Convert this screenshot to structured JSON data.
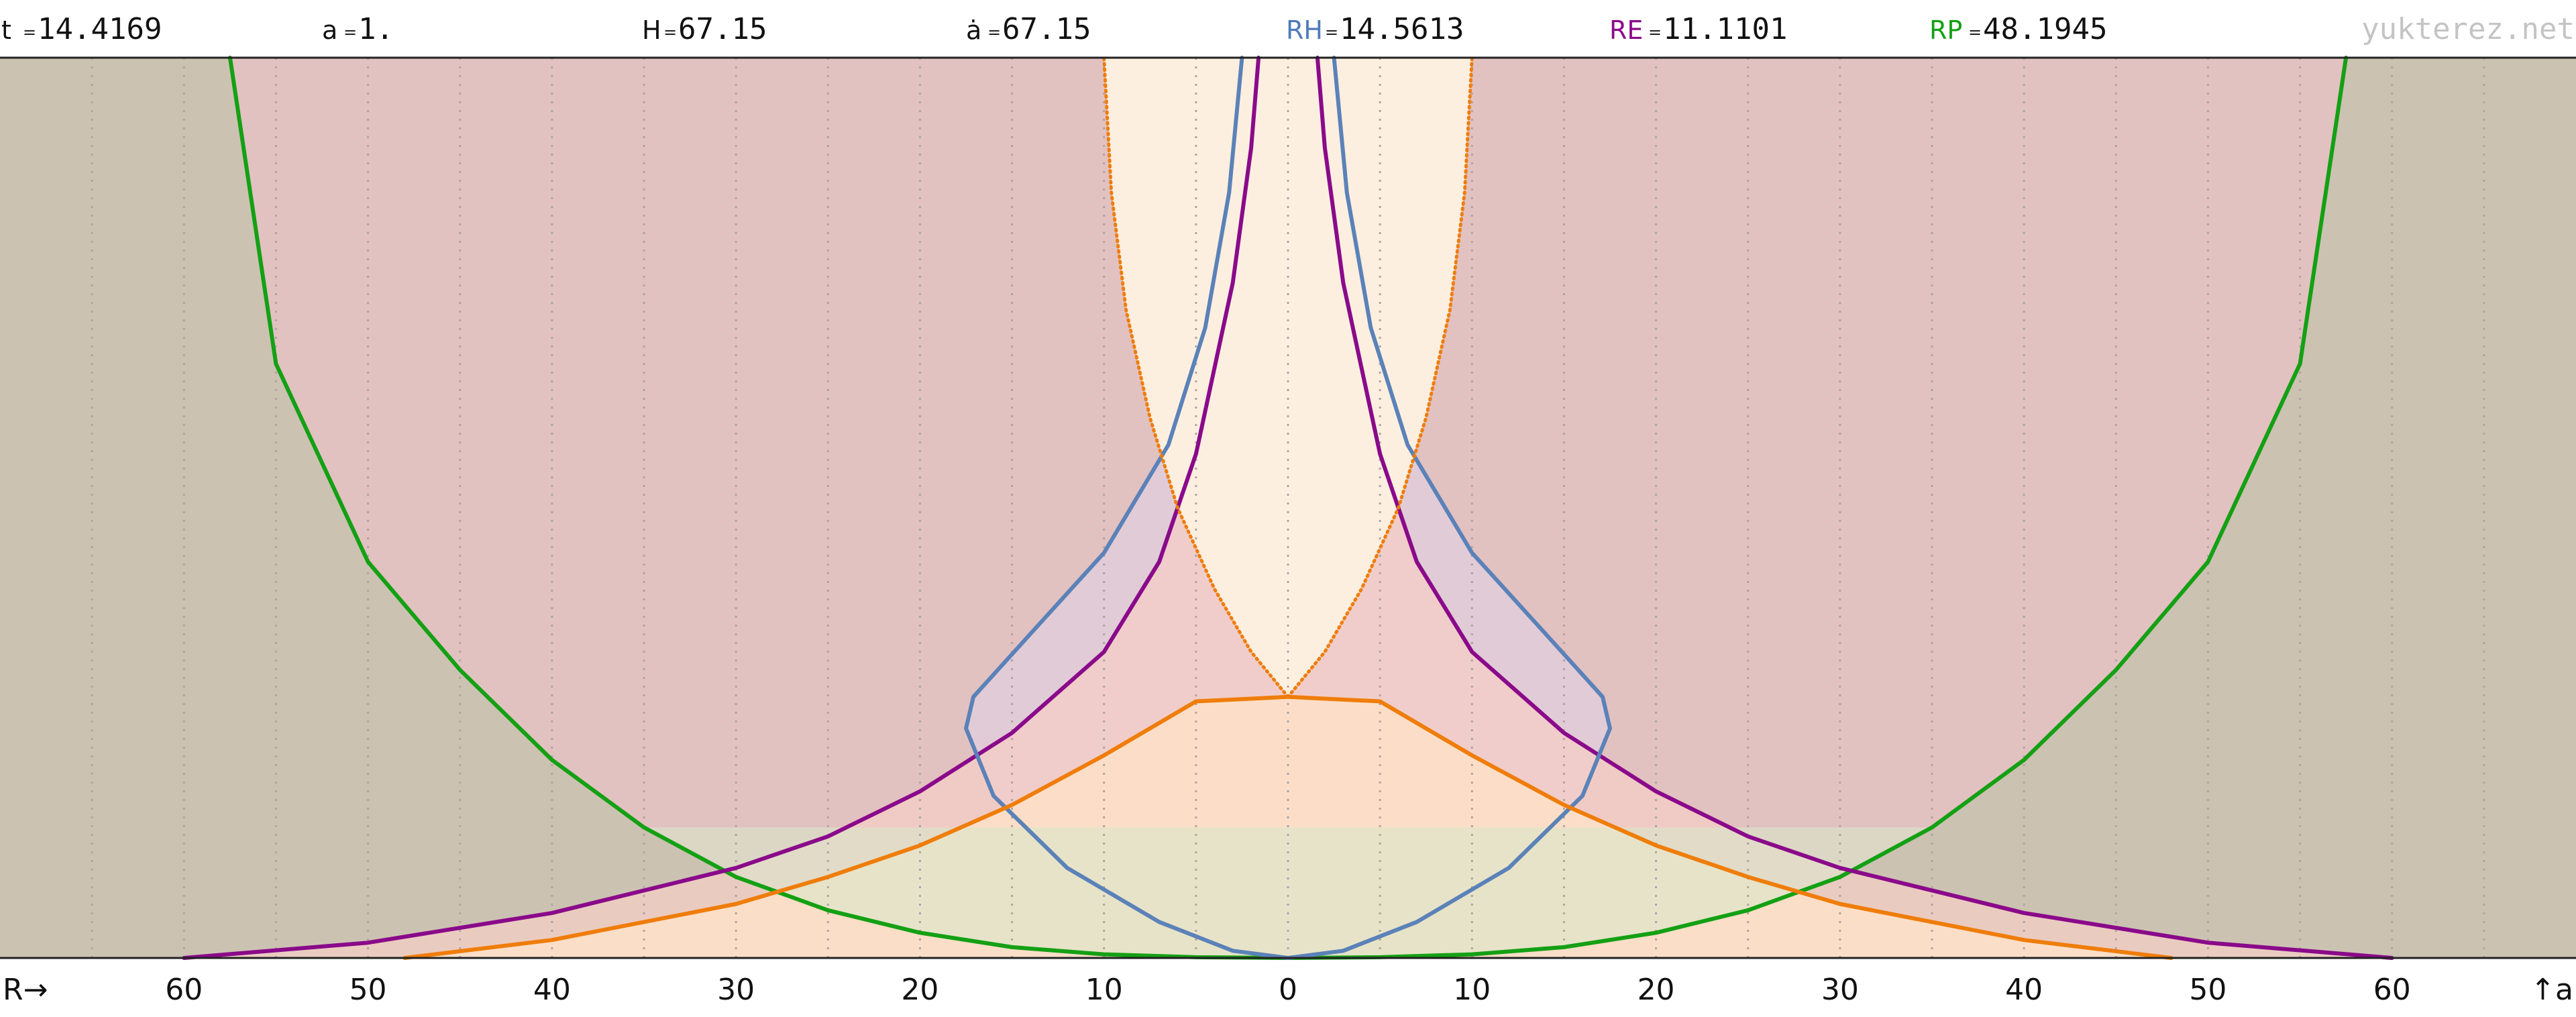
{
  "header": {
    "readouts": [
      {
        "label": "t",
        "value": "14.4169",
        "color": "#111111"
      },
      {
        "label": "a",
        "value": "1.",
        "color": "#111111"
      },
      {
        "label": "H",
        "value": "67.15",
        "color": "#111111"
      },
      {
        "label": "ȧ",
        "value": "67.15",
        "color": "#111111"
      },
      {
        "label": "RH",
        "value": "14.5613",
        "color": "#4f7bb7"
      },
      {
        "label": "RE",
        "value": "11.1101",
        "color": "#8a0a8a"
      },
      {
        "label": "RP",
        "value": "48.1945",
        "color": "#14a014"
      }
    ],
    "watermark": "yukterez.net"
  },
  "chart_data": {
    "type": "line",
    "x_axis_label": "R→",
    "y_axis_label": "↑a",
    "xlim": [
      -70,
      70
    ],
    "ylim": [
      0,
      1
    ],
    "tick_labels": [
      "60",
      "50",
      "40",
      "30",
      "20",
      "10",
      "0",
      "10",
      "20",
      "30",
      "40",
      "50",
      "60"
    ],
    "tick_values": [
      -60,
      -50,
      -40,
      -30,
      -20,
      -10,
      0,
      10,
      20,
      30,
      40,
      50,
      60
    ],
    "grid": "vertical dotted, every 5",
    "colors": {
      "background_outer": "#ccc2b1",
      "region_red": "#e2c1c1",
      "region_inner": "#fdefe0",
      "region_lavender": "#e0ccda",
      "region_green": "#d8e6c8",
      "grid": "#b0a4a4",
      "frame": "#222222"
    },
    "series": [
      {
        "key": "particle_horizon",
        "color": "#14a014",
        "style": "solid",
        "points": [
          [
            -57.5,
            1.0
          ],
          [
            -55,
            0.66
          ],
          [
            -50,
            0.44
          ],
          [
            -45,
            0.32
          ],
          [
            -40,
            0.22
          ],
          [
            -35,
            0.145
          ],
          [
            -30,
            0.09
          ],
          [
            -25,
            0.053
          ],
          [
            -20,
            0.028
          ],
          [
            -15,
            0.012
          ],
          [
            -10,
            0.004
          ],
          [
            -5,
            0.0008
          ],
          [
            0,
            0.0
          ],
          [
            5,
            0.0008
          ],
          [
            10,
            0.004
          ],
          [
            15,
            0.012
          ],
          [
            20,
            0.028
          ],
          [
            25,
            0.053
          ],
          [
            30,
            0.09
          ],
          [
            35,
            0.145
          ],
          [
            40,
            0.22
          ],
          [
            45,
            0.32
          ],
          [
            50,
            0.44
          ],
          [
            55,
            0.66
          ],
          [
            57.5,
            1.0
          ]
        ]
      },
      {
        "key": "event_horizon",
        "color": "#8a0a8a",
        "style": "solid",
        "points": [
          [
            -60,
            0.0
          ],
          [
            -50,
            0.017
          ],
          [
            -40,
            0.05
          ],
          [
            -30,
            0.1
          ],
          [
            -25,
            0.135
          ],
          [
            -20,
            0.185
          ],
          [
            -15,
            0.25
          ],
          [
            -10,
            0.34
          ],
          [
            -7,
            0.44
          ],
          [
            -5,
            0.56
          ],
          [
            -3,
            0.75
          ],
          [
            -2,
            0.9
          ],
          [
            -1.6,
            1.0
          ]
        ]
      },
      {
        "key": "event_horizon_r",
        "color": "#8a0a8a",
        "style": "solid",
        "points": [
          [
            1.6,
            1.0
          ],
          [
            2,
            0.9
          ],
          [
            3,
            0.75
          ],
          [
            5,
            0.56
          ],
          [
            7,
            0.44
          ],
          [
            10,
            0.34
          ],
          [
            15,
            0.25
          ],
          [
            20,
            0.185
          ],
          [
            25,
            0.135
          ],
          [
            30,
            0.1
          ],
          [
            40,
            0.05
          ],
          [
            50,
            0.017
          ],
          [
            60,
            0.0
          ]
        ]
      },
      {
        "key": "hubble_sphere",
        "color": "#5b82b8",
        "style": "solid",
        "points": [
          [
            -2.5,
            1.0
          ],
          [
            -3.2,
            0.85
          ],
          [
            -4.5,
            0.7
          ],
          [
            -6.5,
            0.57
          ],
          [
            -10,
            0.45
          ],
          [
            -14,
            0.36
          ],
          [
            -17.1,
            0.29
          ],
          [
            -17.5,
            0.255
          ],
          [
            -16,
            0.18
          ],
          [
            -12,
            0.1
          ],
          [
            -7,
            0.04
          ],
          [
            -3,
            0.008
          ],
          [
            0,
            0.0
          ],
          [
            3,
            0.008
          ],
          [
            7,
            0.04
          ],
          [
            12,
            0.1
          ],
          [
            16,
            0.18
          ],
          [
            17.5,
            0.255
          ],
          [
            17.1,
            0.29
          ],
          [
            14,
            0.36
          ],
          [
            10,
            0.45
          ],
          [
            6.5,
            0.57
          ],
          [
            4.5,
            0.7
          ],
          [
            3.2,
            0.85
          ],
          [
            2.5,
            1.0
          ]
        ]
      },
      {
        "key": "light_cone",
        "color": "#ef7d0a",
        "style": "solid",
        "points": [
          [
            -48,
            0.0
          ],
          [
            -40,
            0.02
          ],
          [
            -30,
            0.06
          ],
          [
            -25,
            0.09
          ],
          [
            -20,
            0.125
          ],
          [
            -15,
            0.17
          ],
          [
            -10,
            0.225
          ],
          [
            -5,
            0.285
          ],
          [
            0,
            0.29
          ],
          [
            5,
            0.285
          ],
          [
            10,
            0.225
          ],
          [
            15,
            0.17
          ],
          [
            20,
            0.125
          ],
          [
            25,
            0.09
          ],
          [
            30,
            0.06
          ],
          [
            40,
            0.02
          ],
          [
            48,
            0.0
          ]
        ]
      },
      {
        "key": "light_cone_dotted_l",
        "color": "#ef7d0a",
        "style": "dotted",
        "points": [
          [
            0,
            0.29
          ],
          [
            -2,
            0.34
          ],
          [
            -4,
            0.41
          ],
          [
            -6,
            0.5
          ],
          [
            -7.5,
            0.6
          ],
          [
            -8.8,
            0.72
          ],
          [
            -9.6,
            0.85
          ],
          [
            -10,
            1.0
          ]
        ]
      },
      {
        "key": "light_cone_dotted_r",
        "color": "#ef7d0a",
        "style": "dotted",
        "points": [
          [
            0,
            0.29
          ],
          [
            2,
            0.34
          ],
          [
            4,
            0.41
          ],
          [
            6,
            0.5
          ],
          [
            7.5,
            0.6
          ],
          [
            8.8,
            0.72
          ],
          [
            9.6,
            0.85
          ],
          [
            10,
            1.0
          ]
        ]
      }
    ]
  }
}
